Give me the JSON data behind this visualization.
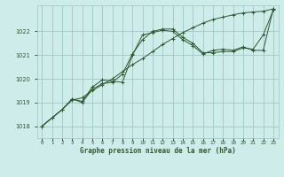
{
  "title": "Graphe pression niveau de la mer (hPa)",
  "background_color": "#ceecea",
  "grid_color": "#9ec8c4",
  "line_color": "#2d5a2d",
  "xlim": [
    -0.5,
    23.5
  ],
  "ylim": [
    1017.5,
    1023.1
  ],
  "yticks": [
    1018,
    1019,
    1020,
    1021,
    1022
  ],
  "xtick_labels": [
    "0",
    "1",
    "2",
    "3",
    "4",
    "5",
    "6",
    "7",
    "8",
    "9",
    "10",
    "11",
    "12",
    "13",
    "14",
    "15",
    "16",
    "17",
    "18",
    "19",
    "20",
    "21",
    "22",
    "23"
  ],
  "series1_x": [
    0,
    1,
    2,
    3,
    4,
    5,
    6,
    7,
    8,
    9,
    10,
    11,
    12,
    13,
    14,
    15,
    16,
    17,
    18,
    19,
    20,
    21,
    22,
    23
  ],
  "series1_y": [
    1018.0,
    1018.35,
    1018.7,
    1019.1,
    1019.2,
    1019.5,
    1019.75,
    1020.0,
    1020.3,
    1020.6,
    1020.85,
    1021.15,
    1021.45,
    1021.7,
    1021.95,
    1022.15,
    1022.35,
    1022.5,
    1022.6,
    1022.7,
    1022.78,
    1022.82,
    1022.85,
    1022.95
  ],
  "series2_x": [
    0,
    1,
    2,
    3,
    4,
    5,
    6,
    7,
    8,
    9,
    10,
    11,
    12,
    13,
    14,
    15,
    16,
    17,
    18,
    19,
    20,
    21,
    22,
    23
  ],
  "series2_y": [
    1018.0,
    1018.35,
    1018.7,
    1019.15,
    1019.0,
    1019.55,
    1019.8,
    1019.85,
    1020.2,
    1021.05,
    1021.65,
    1022.0,
    1022.1,
    1022.1,
    1021.75,
    1021.5,
    1021.1,
    1021.1,
    1021.15,
    1021.15,
    1021.3,
    1021.25,
    1021.85,
    1022.9
  ],
  "series3_x": [
    0,
    2,
    3,
    4,
    5,
    6,
    7,
    8,
    9,
    10,
    11,
    12,
    13,
    14,
    15,
    16,
    17,
    18,
    19,
    20,
    21,
    22,
    23
  ],
  "series3_y": [
    1018.0,
    1018.7,
    1019.15,
    1019.05,
    1019.65,
    1019.95,
    1019.9,
    1019.85,
    1021.0,
    1021.85,
    1021.95,
    1022.05,
    1022.0,
    1021.65,
    1021.4,
    1021.05,
    1021.2,
    1021.25,
    1021.2,
    1021.35,
    1021.2,
    1021.2,
    1022.95
  ]
}
